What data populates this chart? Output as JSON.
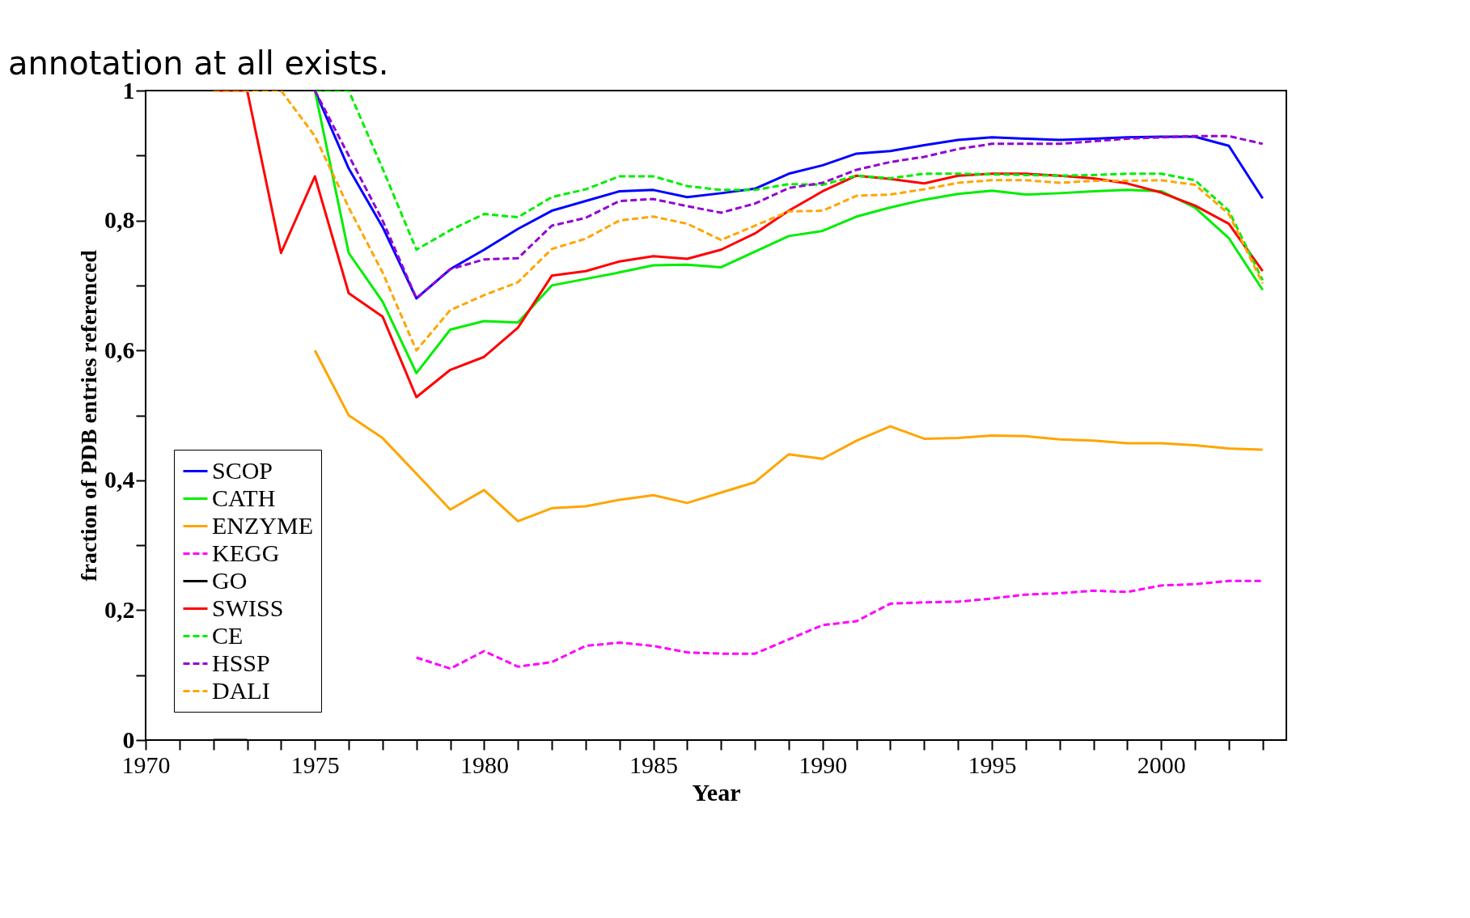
{
  "chart_data": {
    "type": "line",
    "annotations": [
      "annotation at all exists."
    ],
    "xlabel": "Year",
    "ylabel": "fraction of PDB entries referenced",
    "xlim": [
      1970,
      2003.7
    ],
    "ylim": [
      0,
      1
    ],
    "xticks": [
      1970,
      {
        "value": 1971,
        "label": null
      },
      {
        "value": 1972,
        "label": null
      },
      {
        "value": 1973,
        "label": null
      },
      {
        "value": 1974,
        "label": null
      },
      1975,
      {
        "value": 1976,
        "label": null
      },
      {
        "value": 1977,
        "label": null
      },
      {
        "value": 1978,
        "label": null
      },
      {
        "value": 1979,
        "label": null
      },
      1980,
      {
        "value": 1981,
        "label": null
      },
      {
        "value": 1982,
        "label": null
      },
      {
        "value": 1983,
        "label": null
      },
      {
        "value": 1984,
        "label": null
      },
      1985,
      {
        "value": 1986,
        "label": null
      },
      {
        "value": 1987,
        "label": null
      },
      {
        "value": 1988,
        "label": null
      },
      {
        "value": 1989,
        "label": null
      },
      1990,
      {
        "value": 1991,
        "label": null
      },
      {
        "value": 1992,
        "label": null
      },
      {
        "value": 1993,
        "label": null
      },
      {
        "value": 1994,
        "label": null
      },
      1995,
      {
        "value": 1996,
        "label": null
      },
      {
        "value": 1997,
        "label": null
      },
      {
        "value": 1998,
        "label": null
      },
      {
        "value": 1999,
        "label": null
      },
      2000,
      {
        "value": 2001,
        "label": null
      },
      {
        "value": 2002,
        "label": null
      },
      {
        "value": 2003,
        "label": null
      }
    ],
    "yticks": [
      0,
      {
        "value": 0.1,
        "label": null
      },
      {
        "value": 0.2,
        "label": "0,2"
      },
      {
        "value": 0.3,
        "label": null
      },
      {
        "value": 0.4,
        "label": "0,4"
      },
      {
        "value": 0.5,
        "label": null
      },
      {
        "value": 0.6,
        "label": "0,6"
      },
      {
        "value": 0.7,
        "label": null
      },
      {
        "value": 0.8,
        "label": "0,8"
      },
      {
        "value": 0.9,
        "label": null
      },
      1
    ],
    "grid": false,
    "legend": "bottom left",
    "marker": "none",
    "x": [
      1972,
      1973,
      1974,
      1975,
      1976,
      1977,
      1978,
      1979,
      1980,
      1981,
      1982,
      1983,
      1984,
      1985,
      1986,
      1987,
      1988,
      1989,
      1990,
      1991,
      1992,
      1993,
      1994,
      1995,
      1996,
      1997,
      1998,
      1999,
      2000,
      2001,
      2002,
      2003
    ],
    "series": [
      {
        "name": "SCOP",
        "color": "#0000ff",
        "line_style": "solid",
        "values": [
          null,
          null,
          null,
          1,
          0.88,
          0.79,
          0.68,
          0.725,
          0.755,
          0.787,
          0.815,
          0.83,
          0.845,
          0.847,
          0.836,
          0.842,
          0.849,
          0.872,
          0.885,
          0.903,
          0.907,
          0.916,
          0.924,
          0.928,
          0.926,
          0.924,
          0.926,
          0.928,
          0.929,
          0.929,
          0.915,
          0.834
        ]
      },
      {
        "name": "CATH",
        "color": "#00ee00",
        "line_style": "solid",
        "values": [
          null,
          null,
          null,
          1,
          0.75,
          0.675,
          0.565,
          0.632,
          0.645,
          0.643,
          0.7,
          0.71,
          0.72,
          0.731,
          0.732,
          0.728,
          0.752,
          0.776,
          0.784,
          0.806,
          0.82,
          0.832,
          0.841,
          0.846,
          0.84,
          0.842,
          0.845,
          0.847,
          0.845,
          0.82,
          0.773,
          0.693
        ]
      },
      {
        "name": "ENZYME",
        "color": "#ffa500",
        "line_style": "solid",
        "values": [
          null,
          null,
          null,
          0.6,
          0.5,
          0.465,
          0.41,
          0.355,
          0.385,
          0.337,
          0.357,
          0.36,
          0.37,
          0.377,
          0.365,
          0.381,
          0.397,
          0.44,
          0.433,
          0.461,
          0.483,
          0.464,
          0.465,
          0.469,
          0.468,
          0.463,
          0.461,
          0.457,
          0.457,
          0.454,
          0.449,
          0.447
        ]
      },
      {
        "name": "KEGG",
        "color": "#ff00ff",
        "line_style": "dashed",
        "values": [
          null,
          null,
          null,
          null,
          null,
          null,
          0.127,
          0.11,
          0.137,
          0.113,
          0.12,
          0.145,
          0.15,
          0.145,
          0.135,
          0.133,
          0.133,
          0.155,
          0.177,
          0.183,
          0.21,
          0.212,
          0.213,
          0.218,
          0.224,
          0.226,
          0.23,
          0.228,
          0.238,
          0.24,
          0.245,
          0.245
        ]
      },
      {
        "name": "GO",
        "color": "#000000",
        "line_style": "solid",
        "values": [
          0,
          0,
          null,
          null,
          null,
          null,
          null,
          null,
          null,
          null,
          null,
          null,
          null,
          null,
          null,
          null,
          null,
          null,
          null,
          null,
          null,
          null,
          null,
          null,
          null,
          null,
          null,
          null,
          null,
          null,
          null,
          null
        ]
      },
      {
        "name": "SWISS",
        "color": "#ff0000",
        "line_style": "solid",
        "values": [
          1,
          1,
          0.75,
          0.868,
          0.688,
          0.652,
          0.528,
          0.57,
          0.59,
          0.635,
          0.715,
          0.722,
          0.737,
          0.745,
          0.741,
          0.755,
          0.78,
          0.815,
          0.845,
          0.869,
          0.864,
          0.857,
          0.869,
          0.872,
          0.872,
          0.869,
          0.865,
          0.857,
          0.843,
          0.823,
          0.795,
          0.722
        ]
      },
      {
        "name": "CE",
        "color": "#00ee00",
        "line_style": "dashed",
        "values": [
          null,
          null,
          null,
          1,
          1,
          0.88,
          0.755,
          0.785,
          0.81,
          0.805,
          0.836,
          0.848,
          0.868,
          0.868,
          0.853,
          0.847,
          0.847,
          0.856,
          0.855,
          0.869,
          0.865,
          0.872,
          0.872,
          0.871,
          0.87,
          0.869,
          0.87,
          0.872,
          0.872,
          0.862,
          0.815,
          0.708
        ]
      },
      {
        "name": "HSSP",
        "color": "#9400d3",
        "line_style": "dashed",
        "values": [
          null,
          null,
          null,
          1,
          0.9,
          0.8,
          0.68,
          0.725,
          0.74,
          0.742,
          0.792,
          0.804,
          0.83,
          0.833,
          0.822,
          0.812,
          0.826,
          0.85,
          0.858,
          0.878,
          0.89,
          0.898,
          0.91,
          0.918,
          0.918,
          0.918,
          0.922,
          0.926,
          0.928,
          0.93,
          0.93,
          0.918
        ]
      },
      {
        "name": "DALI",
        "color": "#ffa500",
        "line_style": "dashed",
        "values": [
          1,
          1,
          1,
          0.93,
          0.82,
          0.72,
          0.6,
          0.662,
          0.685,
          0.705,
          0.756,
          0.772,
          0.8,
          0.806,
          0.795,
          0.77,
          0.792,
          0.814,
          0.815,
          0.838,
          0.84,
          0.848,
          0.858,
          0.862,
          0.862,
          0.858,
          0.861,
          0.861,
          0.862,
          0.855,
          0.81,
          0.703
        ]
      }
    ]
  }
}
